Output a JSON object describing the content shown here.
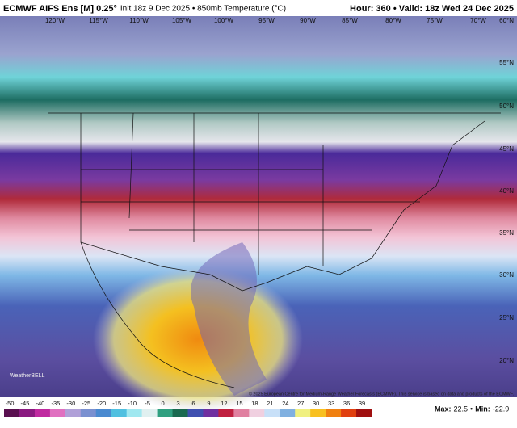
{
  "header": {
    "model": "ECMWF AIFS Ens [M] 0.25°",
    "run": "Init 18z 9 Dec 2025 • 850mb Temperature (°C)",
    "valid": "Hour: 360 • Valid: 18z Wed 24 Dec 2025"
  },
  "map": {
    "lon_labels": [
      "120°W",
      "115°W",
      "110°W",
      "105°W",
      "100°W",
      "95°W",
      "90°W",
      "85°W",
      "80°W",
      "75°W",
      "70°W"
    ],
    "lat_labels": [
      "60°N",
      "55°N",
      "50°N",
      "45°N",
      "40°N",
      "35°N",
      "30°N",
      "25°N",
      "20°N"
    ],
    "copyright": "© 2025 European Centre for Medium-Range Weather Forecasts (ECMWF). This service is based on data and products of the ECMWF.",
    "logo": "WeatherBELL"
  },
  "colorbar": {
    "ticks": [
      -50,
      -45,
      -40,
      -35,
      -30,
      -25,
      -20,
      -15,
      -10,
      -5,
      0,
      3,
      6,
      9,
      12,
      15,
      18,
      21,
      24,
      27,
      30,
      33,
      36,
      39
    ]
  },
  "footer": {
    "max_label": "Max:",
    "max": 22.5,
    "separator": "•",
    "min_label": "Min:",
    "min": -22.9
  }
}
